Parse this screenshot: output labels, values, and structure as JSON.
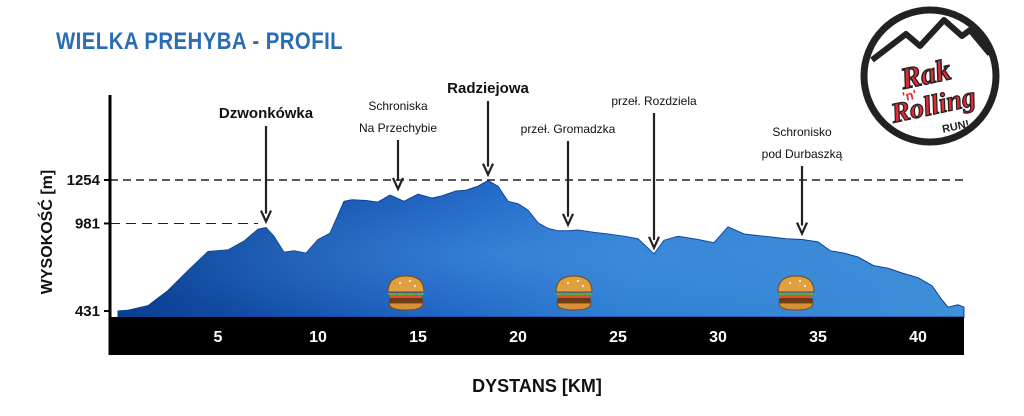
{
  "title": "WIELKA PREHYBA - PROFIL",
  "logo": {
    "line1": "Rak",
    "line2": "'n'",
    "line3": "Rolling",
    "line4": "RUN!"
  },
  "colors": {
    "accent": "#2a6db5",
    "fill_dark": "#0a3f91",
    "fill_light": "#3f8fd9",
    "axis": "#000000"
  },
  "chart_data": {
    "type": "area",
    "xlabel": "DYSTANS [KM]",
    "ylabel": "WYSOKOŚĆ [m]",
    "xlim": [
      0,
      42.3
    ],
    "x_ticks": [
      5,
      10,
      15,
      20,
      25,
      30,
      35,
      40
    ],
    "y_ticks": [
      431,
      981,
      1254
    ],
    "reference_lines": [
      {
        "value": 1254,
        "style": "dashed"
      },
      {
        "value": 981,
        "style": "dashed"
      }
    ],
    "profile": {
      "x": [
        0,
        0.5,
        1.5,
        2.5,
        3.5,
        4.5,
        5.5,
        6.3,
        7.0,
        7.4,
        7.8,
        8.3,
        8.8,
        9.4,
        10.0,
        10.6,
        11.3,
        11.7,
        12.4,
        13.0,
        13.6,
        14.3,
        15.0,
        15.7,
        16.2,
        16.9,
        17.4,
        18.0,
        18.5,
        19.0,
        19.5,
        20.0,
        20.5,
        21.0,
        21.5,
        22.0,
        22.5,
        23.0,
        23.8,
        24.5,
        25.3,
        26.0,
        26.8,
        27.3,
        28.0,
        29.0,
        29.8,
        30.5,
        31.3,
        32.0,
        32.7,
        33.4,
        34.2,
        35.0,
        35.6,
        36.3,
        37.0,
        37.8,
        38.5,
        39.2,
        40.0,
        40.7,
        41.2,
        41.5,
        42.0,
        42.3
      ],
      "y": [
        431,
        436,
        465,
        560,
        685,
        805,
        815,
        870,
        945,
        955,
        900,
        800,
        810,
        795,
        880,
        920,
        1120,
        1130,
        1125,
        1115,
        1160,
        1120,
        1165,
        1140,
        1155,
        1185,
        1190,
        1215,
        1250,
        1215,
        1120,
        1105,
        1065,
        985,
        950,
        935,
        935,
        940,
        925,
        915,
        900,
        885,
        790,
        875,
        900,
        880,
        860,
        960,
        915,
        905,
        895,
        885,
        880,
        865,
        810,
        795,
        770,
        715,
        700,
        670,
        640,
        590,
        500,
        455,
        470,
        455
      ]
    },
    "annotations": [
      {
        "label": "Dzwonkówka",
        "x": 7.4,
        "y": 955
      },
      {
        "label": "Schroniska Na Przechybie",
        "x": 14.0,
        "y": 1160
      },
      {
        "label": "Radziejowa",
        "x": 18.5,
        "y": 1250
      },
      {
        "label": "przeł. Gromadzka",
        "x": 22.5,
        "y": 935
      },
      {
        "label": "przeł. Rozdziela",
        "x": 26.8,
        "y": 790
      },
      {
        "label": "Schronisko pod Durbaszką",
        "x": 34.2,
        "y": 880
      }
    ],
    "food_points": [
      {
        "x": 14.4,
        "icon": "burger-icon"
      },
      {
        "x": 22.8,
        "icon": "burger-icon"
      },
      {
        "x": 33.9,
        "icon": "burger-icon"
      }
    ]
  }
}
